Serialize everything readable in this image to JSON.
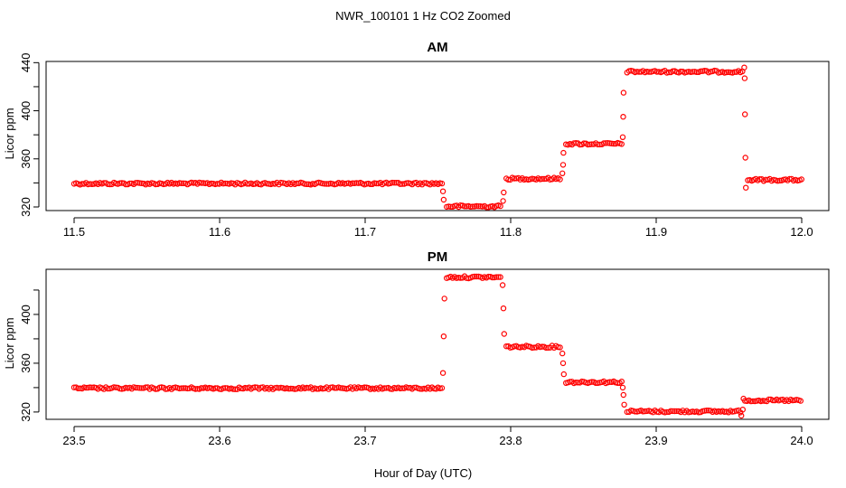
{
  "figure": {
    "suptitle": "NWR_100101  1 Hz CO2 Zoomed",
    "xlabel": "Hour of Day (UTC)"
  },
  "colors": {
    "points": "#ff0000",
    "axis": "#000000",
    "background": "#ffffff"
  },
  "chart_data": [
    {
      "type": "scatter",
      "title": "AM",
      "ylabel": "Licor ppm",
      "xlim": [
        11.5,
        12.0
      ],
      "ylim": [
        317,
        441
      ],
      "xticks": [
        "11.5",
        "11.6",
        "11.7",
        "11.8",
        "11.9",
        "12.0"
      ],
      "xtick_values": [
        11.5,
        11.6,
        11.7,
        11.8,
        11.9,
        12.0
      ],
      "yticks": [
        "320",
        "360",
        "400",
        "440"
      ],
      "ytick_values": [
        320,
        360,
        400,
        440
      ],
      "yminor": [
        340,
        380,
        420
      ],
      "sample_rate_hz": 1,
      "plateaus": [
        {
          "x_start": 11.5,
          "x_end": 11.753,
          "y": 339.5
        },
        {
          "x_start": 11.756,
          "x_end": 11.794,
          "y": 320.5
        },
        {
          "x_start": 11.797,
          "x_end": 11.835,
          "y": 343.5
        },
        {
          "x_start": 11.838,
          "x_end": 11.877,
          "y": 372.5
        },
        {
          "x_start": 11.88,
          "x_end": 11.96,
          "y": 432.5
        },
        {
          "x_start": 11.963,
          "x_end": 12.0,
          "y": 342.5
        }
      ],
      "transition_points": [
        {
          "x": 11.7535,
          "y": 333
        },
        {
          "x": 11.754,
          "y": 326
        },
        {
          "x": 11.7948,
          "y": 325
        },
        {
          "x": 11.7952,
          "y": 332
        },
        {
          "x": 11.8355,
          "y": 348
        },
        {
          "x": 11.836,
          "y": 355
        },
        {
          "x": 11.8363,
          "y": 365
        },
        {
          "x": 11.877,
          "y": 378
        },
        {
          "x": 11.8773,
          "y": 395
        },
        {
          "x": 11.8776,
          "y": 415
        },
        {
          "x": 11.9605,
          "y": 436
        },
        {
          "x": 11.9608,
          "y": 427
        },
        {
          "x": 11.961,
          "y": 397
        },
        {
          "x": 11.9613,
          "y": 361
        },
        {
          "x": 11.9616,
          "y": 336
        }
      ]
    },
    {
      "type": "scatter",
      "title": "PM",
      "ylabel": "Licor ppm",
      "xlim": [
        23.5,
        24.0
      ],
      "ylim": [
        314,
        437
      ],
      "xticks": [
        "23.5",
        "23.6",
        "23.7",
        "23.8",
        "23.9",
        "24.0"
      ],
      "xtick_values": [
        23.5,
        23.6,
        23.7,
        23.8,
        23.9,
        24.0
      ],
      "yticks": [
        "320",
        "360",
        "400"
      ],
      "ytick_values": [
        320,
        360,
        400
      ],
      "yminor": [
        340,
        380,
        420
      ],
      "sample_rate_hz": 1,
      "plateaus": [
        {
          "x_start": 23.5,
          "x_end": 23.753,
          "y": 339.5
        },
        {
          "x_start": 23.756,
          "x_end": 23.794,
          "y": 430.5
        },
        {
          "x_start": 23.797,
          "x_end": 23.835,
          "y": 373.5
        },
        {
          "x_start": 23.838,
          "x_end": 23.877,
          "y": 344.5
        },
        {
          "x_start": 23.88,
          "x_end": 23.958,
          "y": 320.5
        },
        {
          "x_start": 23.961,
          "x_end": 24.0,
          "y": 329.5
        }
      ],
      "transition_points": [
        {
          "x": 23.7535,
          "y": 352
        },
        {
          "x": 23.754,
          "y": 382
        },
        {
          "x": 23.7545,
          "y": 413
        },
        {
          "x": 23.7945,
          "y": 424
        },
        {
          "x": 23.795,
          "y": 405
        },
        {
          "x": 23.7955,
          "y": 384
        },
        {
          "x": 23.8355,
          "y": 368
        },
        {
          "x": 23.836,
          "y": 360
        },
        {
          "x": 23.8365,
          "y": 351
        },
        {
          "x": 23.877,
          "y": 340
        },
        {
          "x": 23.8775,
          "y": 334
        },
        {
          "x": 23.878,
          "y": 326
        },
        {
          "x": 23.9585,
          "y": 317
        },
        {
          "x": 23.9595,
          "y": 322
        },
        {
          "x": 23.96,
          "y": 331
        }
      ]
    }
  ]
}
